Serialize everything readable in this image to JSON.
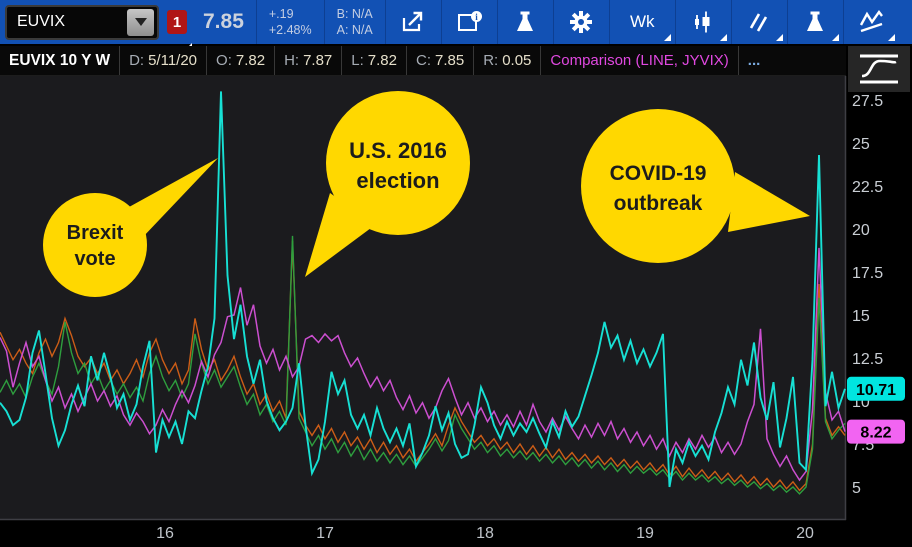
{
  "toolbar": {
    "symbol": "EUVIX",
    "linked_badge": "1",
    "price": "7.85",
    "change": "+.19",
    "change_pct": "+2.48%",
    "bid": "B: N/A",
    "ask": "A: N/A",
    "period_label": "Wk",
    "icons": [
      "dropdown-arrow-icon",
      "share-icon",
      "notes-info-icon",
      "analyze-flask-icon",
      "settings-gear-icon",
      "chart-type-candle-icon",
      "drawings-slashes-icon",
      "studies-flask-icon",
      "patterns-zigzag-icon",
      "scurve-chart-mode-icon"
    ],
    "accent_blue": "#1251b4"
  },
  "status_row": {
    "title": "EUVIX 10 Y W",
    "fields": [
      {
        "label": "D:",
        "value": "5/11/20"
      },
      {
        "label": "O:",
        "value": "7.82"
      },
      {
        "label": "H:",
        "value": "7.87"
      },
      {
        "label": "L:",
        "value": "7.82"
      },
      {
        "label": "C:",
        "value": "7.85"
      },
      {
        "label": "R:",
        "value": "0.05"
      }
    ],
    "comparison": "Comparison (LINE, JYVIX)",
    "ellipsis": "..."
  },
  "chart_data": {
    "type": "line",
    "title": "EUVIX 10 Y W with comparisons",
    "x_axis": {
      "tick_labels": [
        "16",
        "17",
        "18",
        "19",
        "20"
      ],
      "tick_years": [
        2016,
        2017,
        2018,
        2019,
        2020
      ],
      "range_years": [
        2014.97,
        2020.25
      ]
    },
    "y_axis": {
      "ticks": [
        27.5,
        25,
        22.5,
        20,
        17.5,
        15,
        12.5,
        10,
        7.5,
        5
      ],
      "range": [
        3.1,
        28.9
      ],
      "grid": false
    },
    "series": [
      {
        "name": "orange-comparison",
        "color": "#cc5d17",
        "width": 1.4,
        "values": [
          14.0,
          13.2,
          12.4,
          13.0,
          12.2,
          11.6,
          12.8,
          13.6,
          12.6,
          13.4,
          14.8,
          13.8,
          12.6,
          12.0,
          12.5,
          11.6,
          12.2,
          11.2,
          11.8,
          11.0,
          11.6,
          12.4,
          11.4,
          12.8,
          13.6,
          12.4,
          11.6,
          12.2,
          11.0,
          11.8,
          14.8,
          13.0,
          11.8,
          12.4,
          11.2,
          11.8,
          12.6,
          11.4,
          10.4,
          11.0,
          9.8,
          10.4,
          9.4,
          10.0,
          9.0,
          19.3,
          9.4,
          8.6,
          8.0,
          8.6,
          7.8,
          8.4,
          7.6,
          8.2,
          7.4,
          7.9,
          7.2,
          7.8,
          7.0,
          7.6,
          6.9,
          7.4,
          6.7,
          7.2,
          6.5,
          7.0,
          7.5,
          8.1,
          7.4,
          8.6,
          9.6,
          8.8,
          8.2,
          7.6,
          8.0,
          7.4,
          7.8,
          7.2,
          7.6,
          7.0,
          7.5,
          6.9,
          7.4,
          6.8,
          7.3,
          6.7,
          7.2,
          6.6,
          7.0,
          6.5,
          6.9,
          6.4,
          6.8,
          6.3,
          6.7,
          6.2,
          6.6,
          6.1,
          6.5,
          6.0,
          6.4,
          5.9,
          6.3,
          5.7,
          6.2,
          5.6,
          6.1,
          5.6,
          6.0,
          5.5,
          5.9,
          5.4,
          5.8,
          5.3,
          5.7,
          5.2,
          5.6,
          5.1,
          5.5,
          5.0,
          5.4,
          4.9,
          5.3,
          4.8,
          5.2,
          7.5,
          16.8,
          9.0,
          8.0,
          8.5,
          8.0
        ]
      },
      {
        "name": "green-comparison",
        "color": "#2e9e3e",
        "width": 1.4,
        "values": [
          10.5,
          11.2,
          10.4,
          11.0,
          10.2,
          11.4,
          12.2,
          11.2,
          10.4,
          12.0,
          14.6,
          12.8,
          11.6,
          12.2,
          11.0,
          11.6,
          10.6,
          11.2,
          10.4,
          11.0,
          10.2,
          10.8,
          10.0,
          11.6,
          12.6,
          11.4,
          10.6,
          11.2,
          10.2,
          11.0,
          13.9,
          12.2,
          11.0,
          11.8,
          10.8,
          11.4,
          12.0,
          10.8,
          9.8,
          10.4,
          9.2,
          9.8,
          8.8,
          9.4,
          8.6,
          19.6,
          9.0,
          8.2,
          7.4,
          8.0,
          7.2,
          7.8,
          7.0,
          7.6,
          6.8,
          7.4,
          6.6,
          7.2,
          6.5,
          7.0,
          6.4,
          6.9,
          6.3,
          6.8,
          6.2,
          6.7,
          7.2,
          7.8,
          7.1,
          7.7,
          9.2,
          8.4,
          7.8,
          7.2,
          7.6,
          7.0,
          7.4,
          6.8,
          7.2,
          6.7,
          7.1,
          6.6,
          7.0,
          6.5,
          6.9,
          6.4,
          6.8,
          6.3,
          6.7,
          6.2,
          6.6,
          6.1,
          6.5,
          6.0,
          6.4,
          5.9,
          6.3,
          5.8,
          6.2,
          5.8,
          6.1,
          5.7,
          6.0,
          5.5,
          5.9,
          5.4,
          5.8,
          5.4,
          5.7,
          5.3,
          5.6,
          5.2,
          5.5,
          5.1,
          5.4,
          5.0,
          5.3,
          4.9,
          5.2,
          4.8,
          5.1,
          4.7,
          5.0,
          4.6,
          5.0,
          7.2,
          16.0,
          8.8,
          7.8,
          8.3,
          8.7
        ]
      },
      {
        "name": "JYVIX",
        "color": "#cc4fd0",
        "width": 1.5,
        "badge": "8.22",
        "badge_color": "#f264f2",
        "last_value": 8.22,
        "values": [
          13.7,
          12.9,
          10.8,
          12.2,
          13.4,
          12.0,
          12.6,
          11.2,
          10.0,
          10.8,
          9.6,
          10.4,
          9.4,
          10.2,
          11.0,
          10.0,
          10.6,
          9.7,
          10.3,
          9.2,
          8.6,
          9.3,
          8.8,
          8.1,
          8.6,
          9.5,
          8.8,
          9.8,
          10.6,
          9.9,
          10.9,
          12.3,
          11.4,
          12.7,
          13.4,
          14.9,
          15.0,
          16.6,
          14.4,
          15.6,
          13.2,
          12.2,
          13.0,
          11.8,
          12.6,
          11.4,
          12.0,
          13.6,
          13.8,
          13.4,
          13.9,
          13.5,
          13.8,
          12.8,
          12.0,
          12.5,
          11.6,
          10.8,
          11.4,
          10.6,
          11.2,
          10.2,
          9.5,
          10.3,
          9.3,
          9.9,
          9.0,
          9.6,
          10.6,
          11.3,
          10.2,
          9.2,
          9.9,
          9.0,
          9.6,
          8.8,
          9.4,
          8.6,
          9.2,
          8.5,
          9.4,
          8.6,
          9.8,
          8.8,
          8.2,
          9.0,
          8.3,
          9.1,
          8.4,
          7.8,
          8.6,
          7.9,
          8.7,
          8.0,
          8.8,
          7.8,
          8.4,
          7.6,
          8.2,
          7.4,
          8.0,
          7.2,
          7.8,
          6.8,
          7.6,
          7.0,
          7.8,
          7.2,
          8.0,
          7.3,
          7.9,
          7.0,
          7.6,
          6.9,
          7.5,
          8.8,
          9.8,
          14.2,
          7.8,
          6.9,
          6.2,
          6.8,
          6.0,
          5.4,
          5.9,
          9.5,
          18.9,
          10.5,
          8.9,
          9.4,
          8.22
        ]
      },
      {
        "name": "EUVIX",
        "color": "#17e0d4",
        "width": 1.9,
        "badge": "10.71",
        "badge_color": "#00e5e0",
        "last_value": 10.71,
        "values": [
          9.9,
          9.4,
          8.6,
          8.9,
          10.2,
          12.8,
          14.1,
          11.6,
          9.0,
          7.4,
          8.3,
          9.8,
          10.9,
          9.7,
          12.6,
          11.2,
          12.8,
          11.4,
          9.6,
          10.4,
          8.9,
          9.8,
          12.0,
          13.5,
          7.0,
          8.9,
          7.9,
          8.8,
          7.5,
          9.4,
          9.0,
          10.6,
          12.0,
          14.8,
          28.0,
          17.3,
          13.6,
          15.6,
          12.6,
          11.0,
          12.4,
          10.0,
          9.0,
          8.3,
          8.8,
          9.6,
          12.2,
          8.6,
          5.8,
          6.6,
          8.8,
          11.7,
          10.4,
          11.2,
          9.2,
          8.4,
          9.2,
          8.0,
          9.6,
          8.4,
          7.6,
          8.4,
          7.4,
          8.7,
          6.2,
          7.0,
          8.0,
          9.7,
          8.3,
          9.3,
          7.5,
          6.7,
          6.9,
          8.6,
          10.8,
          9.9,
          8.6,
          7.8,
          8.8,
          8.0,
          8.7,
          8.2,
          9.0,
          8.1,
          7.3,
          8.8,
          7.9,
          9.4,
          8.5,
          9.1,
          10.3,
          11.5,
          12.8,
          14.6,
          13.1,
          13.8,
          12.4,
          13.5,
          12.2,
          13.0,
          12.0,
          12.8,
          13.9,
          5.0,
          7.2,
          6.4,
          7.6,
          6.8,
          7.4,
          6.6,
          8.2,
          9.3,
          10.8,
          9.8,
          12.4,
          10.9,
          13.4,
          10.2,
          8.9,
          11.1,
          7.3,
          9.0,
          11.4,
          6.4,
          6.0,
          12.4,
          24.3,
          9.7,
          11.7,
          9.6,
          10.71
        ]
      }
    ],
    "annotations": [
      {
        "lines": [
          "Brexit",
          "vote"
        ],
        "target": "EUVIX Brexit spike 2016",
        "color": "#ffd800"
      },
      {
        "lines": [
          "U.S. 2016",
          "election"
        ],
        "target": "orange/green election spike late 2016",
        "color": "#ffd800"
      },
      {
        "lines": [
          "COVID-19",
          "outbreak"
        ],
        "target": "EUVIX COVID spike 2020",
        "color": "#ffd800"
      }
    ]
  }
}
